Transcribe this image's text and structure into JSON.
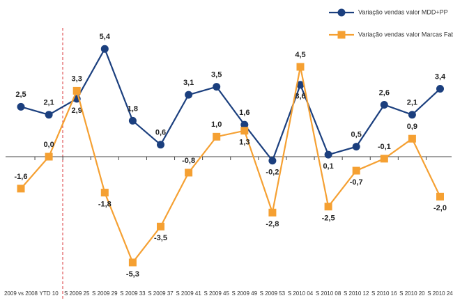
{
  "chart_data": {
    "type": "line",
    "categories": [
      "2009 vs 2008",
      "YTD 10",
      "S 2009 25",
      "S 2009 29",
      "S 2009 33",
      "S 2009 37",
      "S 2009 41",
      "S 2009 45",
      "S 2009 49",
      "S 2009 53",
      "S 2010 04",
      "S 2010 08",
      "S 2010 12",
      "S 2010 16",
      "S 2010 20",
      "S 2010 24"
    ],
    "ylim": [
      -6,
      6
    ],
    "series": [
      {
        "name": "Variação vendas valor MDD+PP",
        "color": "#1b3f7e",
        "marker": "circle",
        "values": [
          2.5,
          2.1,
          2.9,
          5.4,
          1.8,
          0.6,
          3.1,
          3.5,
          1.6,
          -0.2,
          3.6,
          0.1,
          0.5,
          2.6,
          2.1,
          3.4
        ],
        "value_labels": [
          "2,5",
          "2,1",
          "2,9",
          "5,4",
          "1,8",
          "0,6",
          "3,1",
          "3,5",
          "1,6",
          "-0,2",
          "3,6",
          "0,1",
          "0,5",
          "2,6",
          "2,1",
          "3,4"
        ]
      },
      {
        "name": "Variação vendas valor Marcas Fabricantes",
        "color": "#f5a032",
        "marker": "square",
        "values": [
          -1.6,
          0.0,
          3.3,
          -1.8,
          -5.3,
          -3.5,
          -0.8,
          1.0,
          1.3,
          -2.8,
          4.5,
          -2.5,
          -0.7,
          -0.1,
          0.9,
          -2.0
        ],
        "value_labels": [
          "-1,6",
          "0,0",
          "3,3",
          "-1,8",
          "-5,3",
          "-3,5",
          "-0,8",
          "1,0",
          "1,3",
          "-2,8",
          "4,5",
          "-2,5",
          "-0,7",
          "-0,1",
          "0,9",
          "-2,0"
        ]
      }
    ]
  }
}
